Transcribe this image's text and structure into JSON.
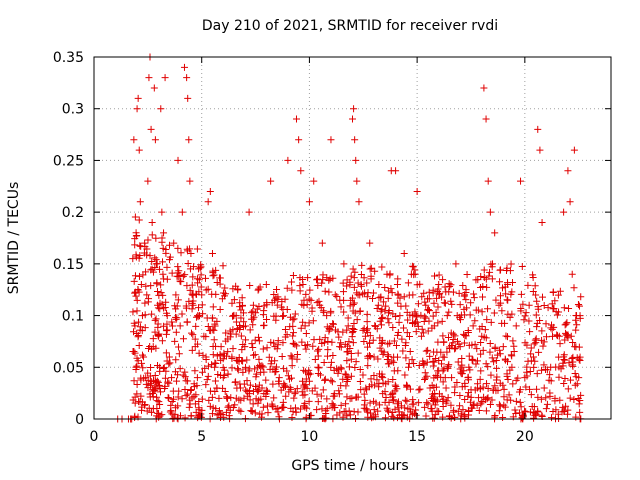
{
  "chart_data": {
    "type": "scatter",
    "title": "Day 210 of 2021, SRMTID for receiver rvdi",
    "xlabel": "GPS time / hours",
    "ylabel": "SRMTID / TECUs",
    "xlim": [
      0,
      24
    ],
    "ylim": [
      0,
      0.35
    ],
    "xticks": [
      0,
      5,
      10,
      15,
      20
    ],
    "xtick_labels": [
      "0",
      "5",
      "10",
      "15",
      "20"
    ],
    "yticks": [
      0,
      0.05,
      0.1,
      0.15,
      0.2,
      0.25,
      0.3,
      0.35
    ],
    "ytick_labels": [
      "0",
      "0.05",
      "0.1",
      "0.15",
      "0.2",
      "0.25",
      "0.3",
      "0.35"
    ],
    "grid": true,
    "marker": "plus",
    "color": "#e00000",
    "points": [
      [
        1.1,
        0.0
      ],
      [
        1.3,
        0.0
      ],
      [
        1.6,
        0.0
      ],
      [
        1.7,
        0.0
      ],
      [
        1.75,
        0.0
      ],
      [
        1.8,
        0.155
      ],
      [
        1.85,
        0.27
      ],
      [
        1.9,
        0.09
      ],
      [
        1.95,
        0.05
      ],
      [
        2.0,
        0.3
      ],
      [
        2.05,
        0.31
      ],
      [
        2.1,
        0.26
      ],
      [
        2.15,
        0.21
      ],
      [
        2.2,
        0.13
      ],
      [
        2.25,
        0.1
      ],
      [
        2.3,
        0.06
      ],
      [
        2.35,
        0.17
      ],
      [
        2.4,
        0.04
      ],
      [
        2.45,
        0.12
      ],
      [
        2.5,
        0.23
      ],
      [
        2.55,
        0.33
      ],
      [
        2.6,
        0.35
      ],
      [
        2.65,
        0.28
      ],
      [
        2.7,
        0.19
      ],
      [
        2.75,
        0.07
      ],
      [
        2.8,
        0.32
      ],
      [
        2.85,
        0.27
      ],
      [
        2.9,
        0.15
      ],
      [
        2.95,
        0.11
      ],
      [
        3.0,
        0.08
      ],
      [
        3.05,
        0.05
      ],
      [
        3.1,
        0.3
      ],
      [
        3.15,
        0.2
      ],
      [
        3.2,
        0.14
      ],
      [
        3.3,
        0.33
      ],
      [
        3.4,
        0.1
      ],
      [
        3.5,
        0.06
      ],
      [
        3.6,
        0.04
      ],
      [
        3.7,
        0.17
      ],
      [
        3.8,
        0.12
      ],
      [
        3.9,
        0.25
      ],
      [
        4.0,
        0.09
      ],
      [
        4.1,
        0.2
      ],
      [
        4.2,
        0.34
      ],
      [
        4.3,
        0.33
      ],
      [
        4.35,
        0.31
      ],
      [
        4.4,
        0.27
      ],
      [
        4.45,
        0.23
      ],
      [
        4.5,
        0.16
      ],
      [
        4.6,
        0.11
      ],
      [
        4.7,
        0.07
      ],
      [
        4.8,
        0.04
      ],
      [
        4.9,
        0.1
      ],
      [
        5.0,
        0.12
      ],
      [
        5.1,
        0.08
      ],
      [
        5.2,
        0.06
      ],
      [
        5.3,
        0.21
      ],
      [
        5.4,
        0.22
      ],
      [
        5.5,
        0.16
      ],
      [
        5.6,
        0.05
      ],
      [
        5.7,
        0.03
      ],
      [
        5.8,
        0.02
      ],
      [
        5.9,
        0.07
      ],
      [
        6.0,
        0.04
      ],
      [
        6.2,
        0.02
      ],
      [
        6.4,
        0.06
      ],
      [
        6.6,
        0.1
      ],
      [
        6.8,
        0.03
      ],
      [
        7.0,
        0.07
      ],
      [
        7.2,
        0.2
      ],
      [
        7.4,
        0.11
      ],
      [
        7.6,
        0.05
      ],
      [
        7.8,
        0.03
      ],
      [
        8.0,
        0.13
      ],
      [
        8.2,
        0.23
      ],
      [
        8.4,
        0.07
      ],
      [
        8.6,
        0.04
      ],
      [
        8.8,
        0.1
      ],
      [
        9.0,
        0.25
      ],
      [
        9.2,
        0.06
      ],
      [
        9.4,
        0.29
      ],
      [
        9.5,
        0.27
      ],
      [
        9.6,
        0.24
      ],
      [
        9.7,
        0.13
      ],
      [
        9.8,
        0.09
      ],
      [
        10.0,
        0.21
      ],
      [
        10.2,
        0.23
      ],
      [
        10.4,
        0.05
      ],
      [
        10.6,
        0.17
      ],
      [
        10.8,
        0.1
      ],
      [
        11.0,
        0.27
      ],
      [
        11.2,
        0.12
      ],
      [
        11.4,
        0.07
      ],
      [
        11.6,
        0.15
      ],
      [
        11.8,
        0.09
      ],
      [
        12.0,
        0.29
      ],
      [
        12.05,
        0.3
      ],
      [
        12.1,
        0.27
      ],
      [
        12.15,
        0.25
      ],
      [
        12.2,
        0.23
      ],
      [
        12.3,
        0.21
      ],
      [
        12.4,
        0.13
      ],
      [
        12.6,
        0.08
      ],
      [
        12.8,
        0.17
      ],
      [
        13.0,
        0.06
      ],
      [
        13.2,
        0.11
      ],
      [
        13.4,
        0.04
      ],
      [
        13.6,
        0.14
      ],
      [
        13.8,
        0.24
      ],
      [
        14.0,
        0.24
      ],
      [
        14.2,
        0.1
      ],
      [
        14.4,
        0.16
      ],
      [
        14.6,
        0.05
      ],
      [
        14.8,
        0.12
      ],
      [
        15.0,
        0.22
      ],
      [
        15.2,
        0.08
      ],
      [
        15.4,
        0.11
      ],
      [
        15.6,
        0.03
      ],
      [
        15.8,
        0.09
      ],
      [
        16.0,
        0.13
      ],
      [
        16.2,
        0.06
      ],
      [
        16.4,
        0.1
      ],
      [
        16.6,
        0.04
      ],
      [
        16.8,
        0.15
      ],
      [
        17.0,
        0.07
      ],
      [
        17.2,
        0.12
      ],
      [
        17.4,
        0.05
      ],
      [
        17.6,
        0.09
      ],
      [
        17.8,
        0.03
      ],
      [
        18.0,
        0.08
      ],
      [
        18.1,
        0.32
      ],
      [
        18.2,
        0.29
      ],
      [
        18.3,
        0.23
      ],
      [
        18.4,
        0.2
      ],
      [
        18.5,
        0.15
      ],
      [
        18.6,
        0.18
      ],
      [
        18.8,
        0.11
      ],
      [
        19.0,
        0.07
      ],
      [
        19.2,
        0.13
      ],
      [
        19.4,
        0.05
      ],
      [
        19.6,
        0.09
      ],
      [
        19.8,
        0.23
      ],
      [
        20.0,
        0.04
      ],
      [
        20.2,
        0.11
      ],
      [
        20.4,
        0.06
      ],
      [
        20.6,
        0.28
      ],
      [
        20.7,
        0.26
      ],
      [
        20.8,
        0.19
      ],
      [
        20.9,
        0.03
      ],
      [
        21.0,
        0.01
      ],
      [
        21.2,
        0.05
      ],
      [
        21.4,
        0.02
      ],
      [
        21.6,
        0.08
      ],
      [
        21.8,
        0.2
      ],
      [
        22.0,
        0.24
      ],
      [
        22.1,
        0.21
      ],
      [
        22.2,
        0.14
      ],
      [
        22.3,
        0.26
      ],
      [
        22.4,
        0.1
      ],
      [
        22.5,
        0.04
      ]
    ],
    "density_seed": 2021,
    "density": [
      {
        "x0": 1.8,
        "x1": 2.2,
        "count": 55,
        "y_max": 0.2
      },
      {
        "x0": 2.2,
        "x1": 3.5,
        "count": 140,
        "y_max": 0.18
      },
      {
        "x0": 3.5,
        "x1": 4.8,
        "count": 110,
        "y_max": 0.17
      },
      {
        "x0": 4.8,
        "x1": 6.0,
        "count": 100,
        "y_max": 0.15
      },
      {
        "x0": 6.0,
        "x1": 9.0,
        "count": 230,
        "y_max": 0.13
      },
      {
        "x0": 9.0,
        "x1": 12.0,
        "count": 230,
        "y_max": 0.14
      },
      {
        "x0": 12.0,
        "x1": 15.0,
        "count": 260,
        "y_max": 0.15
      },
      {
        "x0": 15.0,
        "x1": 18.0,
        "count": 250,
        "y_max": 0.14
      },
      {
        "x0": 18.0,
        "x1": 20.5,
        "count": 170,
        "y_max": 0.15
      },
      {
        "x0": 20.5,
        "x1": 22.6,
        "count": 140,
        "y_max": 0.13
      }
    ]
  }
}
